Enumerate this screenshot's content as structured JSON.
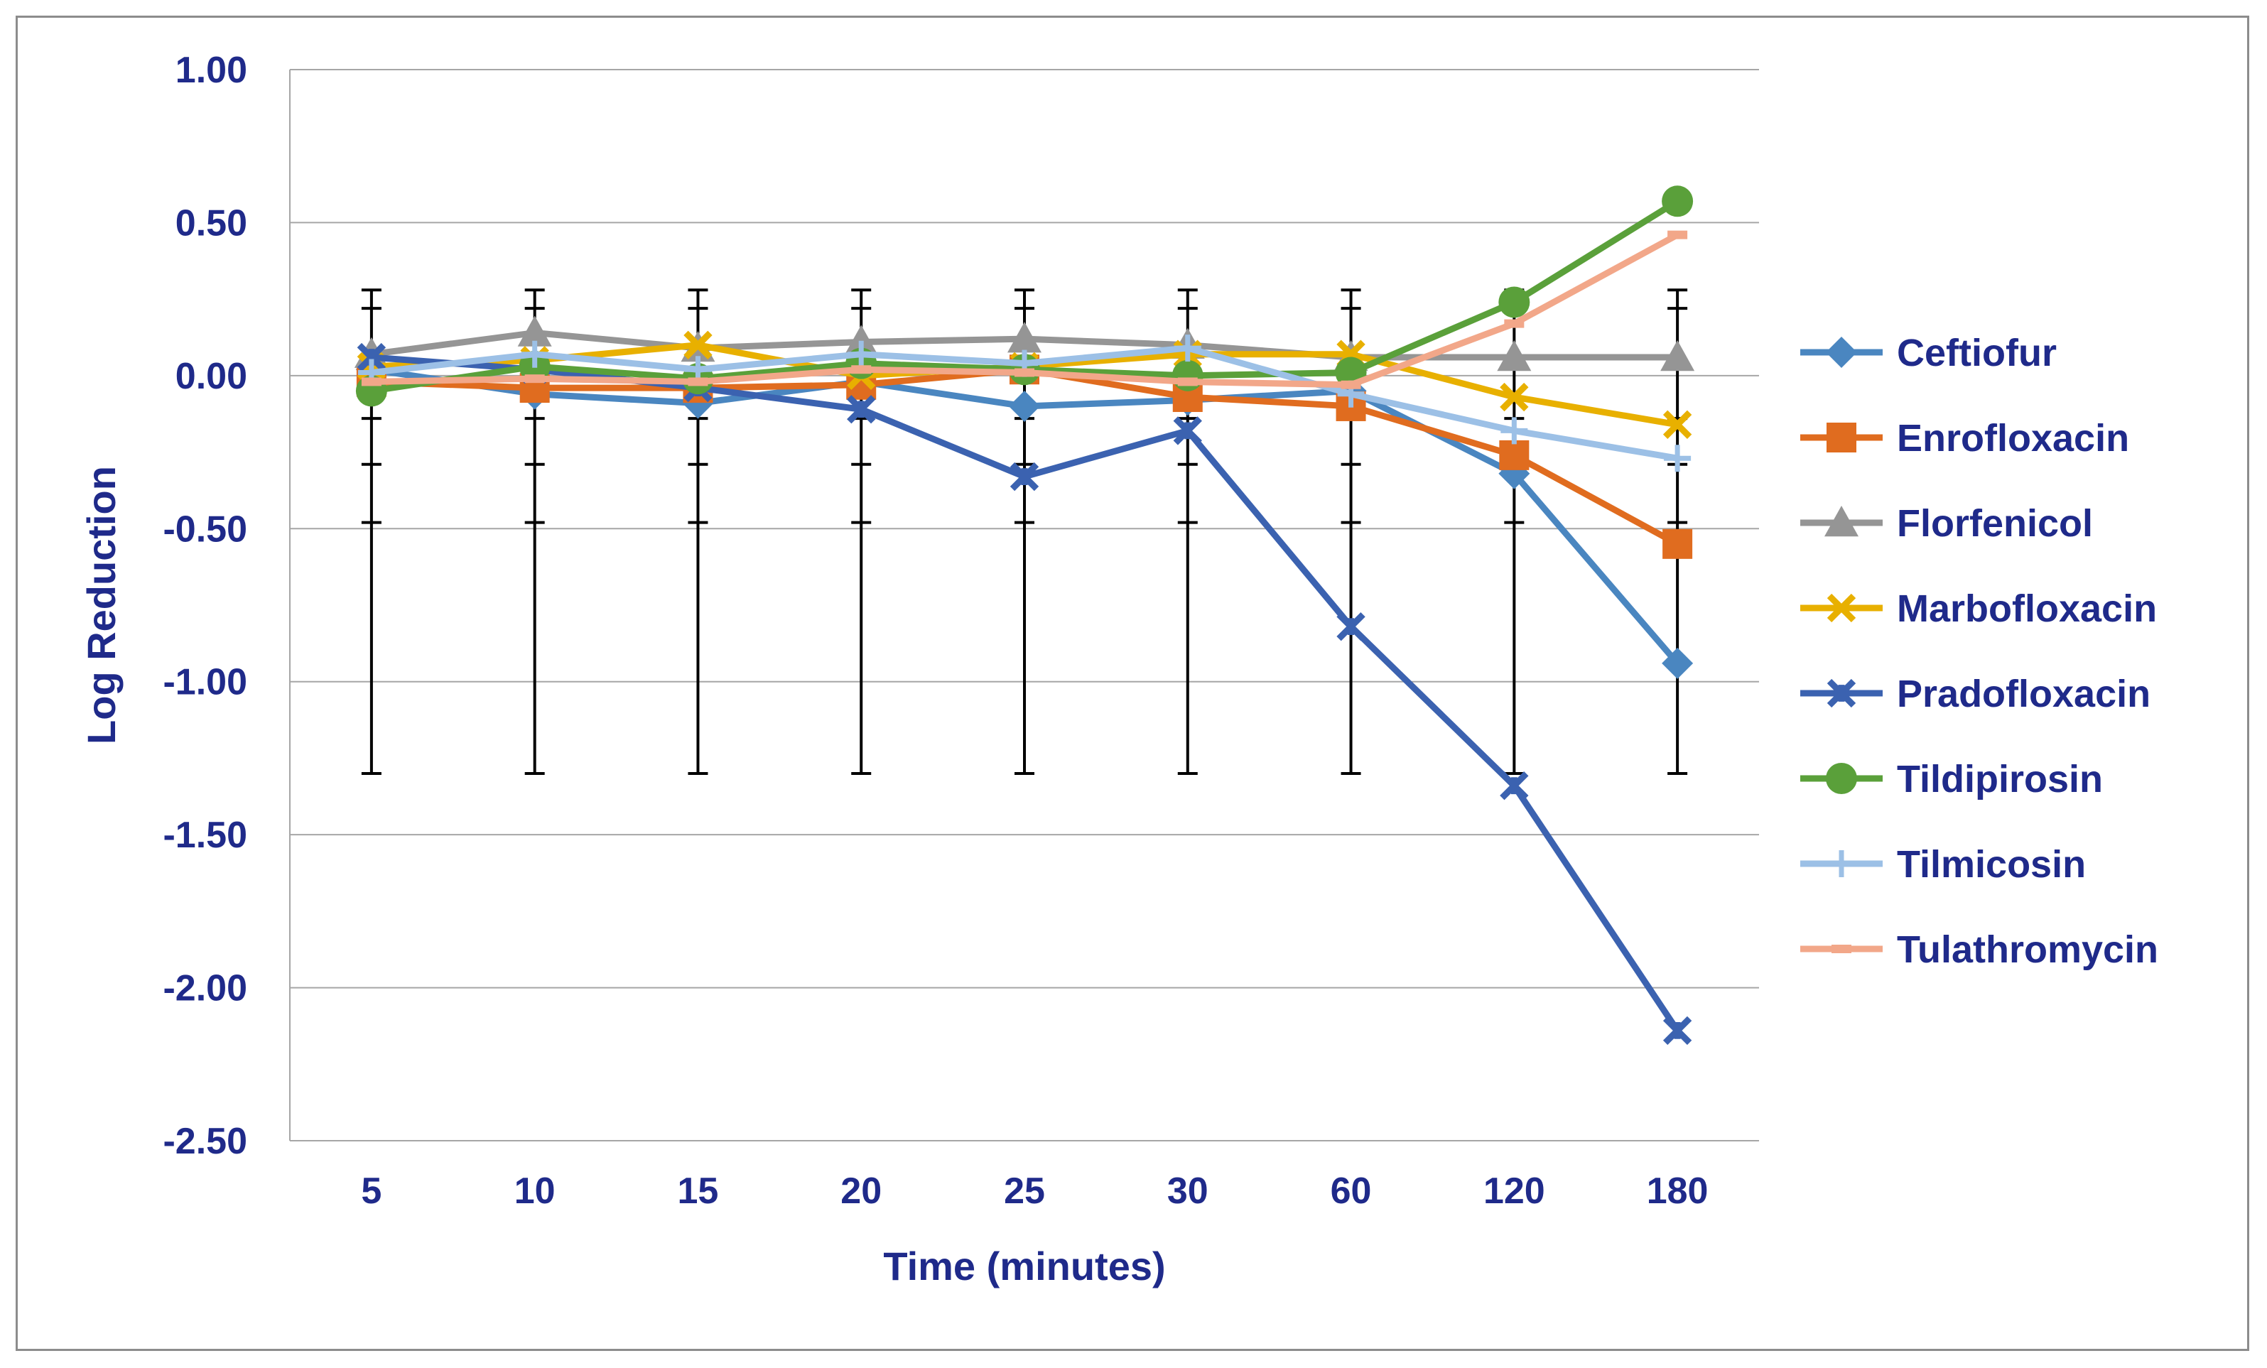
{
  "chart_data": {
    "type": "line",
    "title": "",
    "xlabel": "Time (minutes)",
    "ylabel": "Log Reduction",
    "categories": [
      "5",
      "10",
      "15",
      "20",
      "25",
      "30",
      "60",
      "120",
      "180"
    ],
    "ylim": [
      -2.5,
      1.0
    ],
    "ytick_step": 0.5,
    "ytick_labels": [
      "1.00",
      "0.50",
      "0.00",
      "-0.50",
      "-1.00",
      "-1.50",
      "-2.00",
      "-2.50"
    ],
    "grid": true,
    "legend_position": "right",
    "error_bars": {
      "upper": 0.28,
      "lower": -1.3,
      "inner_upper": 0.22,
      "inner_lower": -0.48,
      "inner_lower2": -0.29,
      "inner_upper2": -0.14
    },
    "series": [
      {
        "name": "Ceftiofur",
        "color": "#4a86c0",
        "marker": "diamond",
        "values": [
          0.02,
          -0.06,
          -0.09,
          -0.02,
          -0.1,
          -0.08,
          -0.05,
          -0.32,
          -0.94
        ]
      },
      {
        "name": "Enrofloxacin",
        "color": "#e06c1f",
        "marker": "square",
        "values": [
          -0.02,
          -0.04,
          -0.04,
          -0.03,
          0.02,
          -0.07,
          -0.1,
          -0.26,
          -0.55
        ]
      },
      {
        "name": "Florfenicol",
        "color": "#959595",
        "marker": "triangle",
        "values": [
          0.07,
          0.14,
          0.09,
          0.11,
          0.12,
          0.1,
          0.06,
          0.06,
          0.06
        ]
      },
      {
        "name": "Marbofloxacin",
        "color": "#e8b000",
        "marker": "x",
        "values": [
          0.03,
          0.05,
          0.1,
          0.0,
          0.03,
          0.07,
          0.07,
          -0.07,
          -0.16
        ]
      },
      {
        "name": "Pradofloxacin",
        "color": "#3b62b0",
        "marker": "star",
        "values": [
          0.06,
          0.02,
          -0.04,
          -0.11,
          -0.33,
          -0.18,
          -0.82,
          -1.34,
          -2.14
        ]
      },
      {
        "name": "Tildipirosin",
        "color": "#5aa03a",
        "marker": "circle",
        "values": [
          -0.05,
          0.03,
          -0.01,
          0.04,
          0.02,
          0.0,
          0.01,
          0.24,
          0.57
        ]
      },
      {
        "name": "Tilmicosin",
        "color": "#9cc0e6",
        "marker": "plus",
        "values": [
          0.01,
          0.07,
          0.02,
          0.07,
          0.04,
          0.09,
          -0.06,
          -0.18,
          -0.27
        ]
      },
      {
        "name": "Tulathromycin",
        "color": "#f2a789",
        "marker": "dash",
        "values": [
          -0.02,
          -0.01,
          -0.02,
          0.02,
          0.01,
          -0.02,
          -0.03,
          0.17,
          0.46
        ]
      }
    ]
  }
}
